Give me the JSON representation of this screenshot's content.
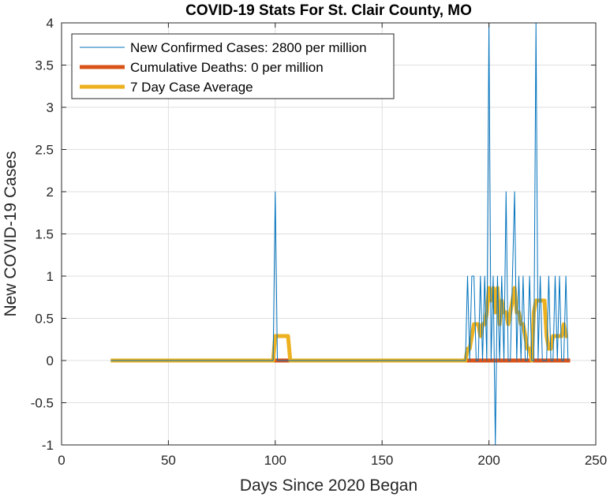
{
  "chart_data": {
    "type": "line",
    "title": "COVID-19 Stats For St. Clair County, MO",
    "xlabel": "Days Since 2020 Began",
    "ylabel": "New COVID-19 Cases",
    "xlim": [
      0,
      250
    ],
    "ylim": [
      -1,
      4
    ],
    "xticks": [
      0,
      50,
      100,
      150,
      200,
      250
    ],
    "yticks": [
      -1,
      -0.5,
      0,
      0.5,
      1,
      1.5,
      2,
      2.5,
      3,
      3.5,
      4
    ],
    "grid": true,
    "legend_position": "top-left",
    "series": [
      {
        "name": "New Confirmed Cases: 2800 per million",
        "color": "#0072BD",
        "line_width": "thin",
        "x": [
          23,
          99,
          100,
          101,
          189,
          190,
          191,
          192,
          193,
          194,
          195,
          196,
          197,
          198,
          199,
          200,
          201,
          202,
          203,
          204,
          205,
          206,
          207,
          208,
          209,
          210,
          211,
          212,
          213,
          214,
          215,
          216,
          217,
          218,
          219,
          220,
          221,
          222,
          223,
          224,
          225,
          226,
          227,
          228,
          229,
          230,
          231,
          232,
          233,
          234,
          235,
          236,
          237
        ],
        "y": [
          0,
          0,
          2,
          0,
          0,
          1,
          0,
          1,
          1,
          0,
          0,
          1,
          0,
          1,
          0,
          4,
          0,
          1,
          -1,
          1,
          0,
          1,
          0,
          2,
          0,
          0,
          1,
          2,
          0,
          1,
          0,
          1,
          0,
          0,
          1,
          0,
          0,
          4,
          0,
          1,
          0,
          0,
          0,
          1,
          0,
          0,
          1,
          0,
          1,
          0,
          0,
          1,
          0
        ]
      },
      {
        "name": "Cumulative Deaths: 0 per million",
        "color": "#D95319",
        "line_width": "thick",
        "x": [
          99,
          101,
          189,
          238
        ],
        "y": [
          0,
          0,
          0,
          0
        ]
      },
      {
        "name": "7 Day Case Average",
        "color": "#EDB120",
        "line_width": "thick",
        "x": [
          23,
          99,
          100,
          106,
          107,
          189,
          190,
          191,
          192,
          193,
          194,
          195,
          196,
          197,
          198,
          199,
          200,
          201,
          202,
          203,
          204,
          205,
          206,
          207,
          208,
          209,
          210,
          211,
          212,
          213,
          214,
          215,
          216,
          217,
          218,
          219,
          220,
          221,
          222,
          223,
          224,
          225,
          226,
          227,
          228,
          229,
          230,
          231,
          232,
          233,
          234,
          235,
          236,
          237
        ],
        "y": [
          0,
          0,
          0.29,
          0.29,
          0,
          0,
          0.14,
          0.14,
          0.29,
          0.43,
          0.43,
          0.43,
          0.29,
          0.43,
          0.43,
          0.57,
          0.86,
          0.71,
          0.86,
          0.57,
          0.86,
          0.43,
          0.71,
          0.57,
          0.57,
          0.43,
          0.57,
          0.71,
          0.86,
          0.57,
          0.57,
          0.43,
          0.43,
          0.29,
          0.14,
          0.14,
          0,
          0.57,
          0.71,
          0.71,
          0.71,
          0.71,
          0.71,
          0.29,
          0.14,
          0.14,
          0.29,
          0.29,
          0.29,
          0.29,
          0.29,
          0.43,
          0.29,
          0.29
        ]
      }
    ]
  }
}
